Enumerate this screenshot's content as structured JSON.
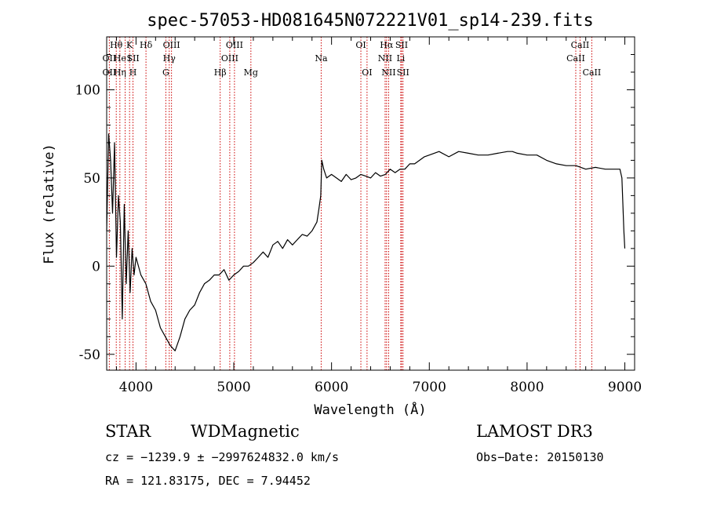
{
  "chart_data": {
    "type": "line",
    "title": "spec-57053-HD081645N072221V01_sp14-239.fits",
    "xlabel": "Wavelength (Å)",
    "ylabel": "Flux (relative)",
    "xlim": [
      3700,
      9100
    ],
    "ylim": [
      -59,
      130
    ],
    "x_ticks": [
      4000,
      5000,
      6000,
      7000,
      8000,
      9000
    ],
    "x_tick_labels": [
      "4000",
      "5000",
      "6000",
      "7000",
      "8000",
      "9000"
    ],
    "y_ticks": [
      -50,
      0,
      50,
      100
    ],
    "y_tick_labels": [
      "-50",
      "0",
      "50",
      "100"
    ],
    "grid": false,
    "series": [
      {
        "color": "#000000",
        "x": [
          3700,
          3720,
          3740,
          3760,
          3780,
          3800,
          3820,
          3840,
          3860,
          3880,
          3900,
          3920,
          3940,
          3960,
          3980,
          4000,
          4050,
          4100,
          4150,
          4200,
          4250,
          4300,
          4350,
          4400,
          4450,
          4500,
          4550,
          4600,
          4650,
          4700,
          4750,
          4800,
          4850,
          4900,
          4950,
          5000,
          5050,
          5100,
          5150,
          5200,
          5250,
          5300,
          5350,
          5400,
          5450,
          5500,
          5550,
          5600,
          5650,
          5700,
          5750,
          5800,
          5850,
          5870,
          5890,
          5900,
          5920,
          5950,
          6000,
          6050,
          6100,
          6150,
          6200,
          6250,
          6300,
          6350,
          6400,
          6450,
          6500,
          6550,
          6600,
          6650,
          6700,
          6750,
          6800,
          6850,
          6900,
          6950,
          7000,
          7100,
          7200,
          7300,
          7400,
          7500,
          7600,
          7700,
          7800,
          7850,
          7900,
          8000,
          8100,
          8200,
          8300,
          8400,
          8500,
          8600,
          8700,
          8800,
          8900,
          8950,
          8970,
          8990,
          9000
        ],
        "y": [
          20,
          75,
          60,
          30,
          70,
          5,
          40,
          25,
          -30,
          35,
          -10,
          20,
          -15,
          10,
          -5,
          5,
          -5,
          -10,
          -20,
          -25,
          -35,
          -40,
          -45,
          -48,
          -40,
          -30,
          -25,
          -22,
          -15,
          -10,
          -8,
          -5,
          -5,
          -2,
          -8,
          -5,
          -3,
          0,
          0,
          2,
          5,
          8,
          5,
          12,
          14,
          10,
          15,
          12,
          15,
          18,
          17,
          20,
          25,
          32,
          40,
          60,
          55,
          50,
          52,
          50,
          48,
          52,
          49,
          50,
          52,
          51,
          50,
          53,
          51,
          52,
          55,
          53,
          55,
          55,
          58,
          58,
          60,
          62,
          63,
          65,
          62,
          65,
          64,
          63,
          63,
          64,
          65,
          65,
          64,
          63,
          63,
          60,
          58,
          57,
          57,
          55,
          56,
          55,
          55,
          55,
          50,
          20,
          10
        ]
      }
    ],
    "line_labels": [
      {
        "text": "OII",
        "wave": 3727,
        "row": 2
      },
      {
        "text": "OII",
        "wave": 3727,
        "row": 3
      },
      {
        "text": "Hθ",
        "wave": 3798,
        "row": 1
      },
      {
        "text": "He",
        "wave": 3835,
        "row": 2
      },
      {
        "text": "Hη",
        "wave": 3835,
        "row": 3
      },
      {
        "text": "K",
        "wave": 3934,
        "row": 1
      },
      {
        "text": "I",
        "wave": 3934,
        "row": 2
      },
      {
        "text": "SII",
        "wave": 3970,
        "row": 2
      },
      {
        "text": "H",
        "wave": 3969,
        "row": 3
      },
      {
        "text": "Hδ",
        "wave": 4102,
        "row": 1
      },
      {
        "text": "OIII",
        "wave": 4363,
        "row": 1
      },
      {
        "text": "Hγ",
        "wave": 4340,
        "row": 2
      },
      {
        "text": "G",
        "wave": 4305,
        "row": 3
      },
      {
        "text": "Hβ",
        "wave": 4861,
        "row": 3
      },
      {
        "text": "OIII",
        "wave": 5007,
        "row": 1
      },
      {
        "text": "OIII",
        "wave": 4959,
        "row": 2
      },
      {
        "text": "Mg",
        "wave": 5175,
        "row": 3
      },
      {
        "text": "Na",
        "wave": 5894,
        "row": 2
      },
      {
        "text": "OI",
        "wave": 6300,
        "row": 1
      },
      {
        "text": "OI",
        "wave": 6363,
        "row": 3
      },
      {
        "text": "Hα",
        "wave": 6563,
        "row": 1
      },
      {
        "text": "SII",
        "wave": 6717,
        "row": 1
      },
      {
        "text": "NII",
        "wave": 6548,
        "row": 2
      },
      {
        "text": "Li",
        "wave": 6708,
        "row": 2
      },
      {
        "text": "NII",
        "wave": 6584,
        "row": 3
      },
      {
        "text": "SII",
        "wave": 6731,
        "row": 3
      },
      {
        "text": "CaII",
        "wave": 8542,
        "row": 1
      },
      {
        "text": "CaII",
        "wave": 8498,
        "row": 2
      },
      {
        "text": "CaII",
        "wave": 8662,
        "row": 3
      }
    ],
    "marker_lines": [
      3727,
      3798,
      3835,
      3889,
      3934,
      3969,
      4102,
      4305,
      4340,
      4363,
      4861,
      4959,
      5007,
      5175,
      5894,
      6300,
      6363,
      6548,
      6563,
      6584,
      6708,
      6717,
      6731,
      8498,
      8542,
      8662
    ],
    "marker_color": "#cc0000"
  },
  "info": {
    "class": "STAR",
    "subclass": "WDMagnetic",
    "survey": "LAMOST DR3",
    "cz": "cz = −1239.9 ± −2997624832.0 km/s",
    "obsdate": "Obs−Date: 20150130",
    "radec": "RA = 121.83175, DEC =    7.94452"
  }
}
